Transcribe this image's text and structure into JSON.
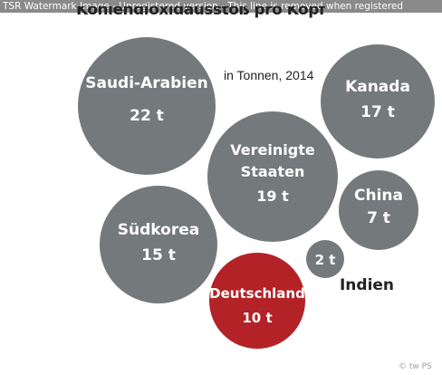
{
  "watermark": "TSR Watermark Image - Unregistered version - This line is removed when registered",
  "copyright": "© tw PS",
  "chart_data": {
    "type": "bubble",
    "title": "Kohlendioxidausstoß pro Kopf",
    "subtitle": "in Tonnen, 2014",
    "unit": "t",
    "colors": {
      "default": "#74797b",
      "highlight": "#b22226",
      "text": "#ffffff",
      "outside_label": "#222222"
    },
    "bubbles": [
      {
        "id": "saudi-arabien",
        "name": "Saudi-Arabien",
        "value": 22,
        "value_label": "22 t"
      },
      {
        "id": "kanada",
        "name": "Kanada",
        "value": 17,
        "value_label": "17 t"
      },
      {
        "id": "vereinigte-staaten",
        "name": "Vereinigte Staaten",
        "value": 19,
        "value_label": "19 t"
      },
      {
        "id": "china",
        "name": "China",
        "value": 7,
        "value_label": "7 t"
      },
      {
        "id": "suedkorea",
        "name": "Südkorea",
        "value": 15,
        "value_label": "15 t"
      },
      {
        "id": "indien",
        "name": "Indien",
        "value": 2,
        "value_label": "2 t"
      },
      {
        "id": "deutschland",
        "name": "Deutschland",
        "value": 10,
        "value_label": "10 t",
        "highlight": true
      }
    ]
  }
}
